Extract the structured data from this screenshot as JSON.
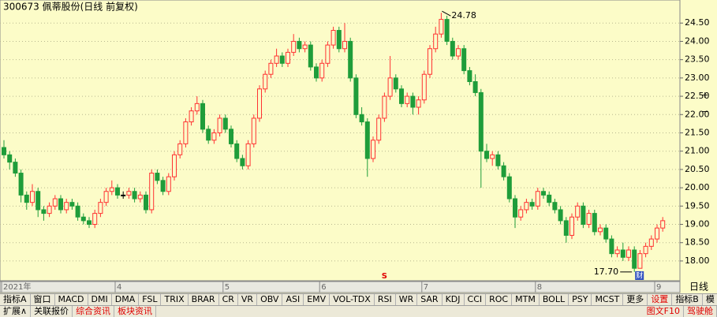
{
  "header": {
    "title": "300673 佩蒂股份(日线 前复权)"
  },
  "chart_data": {
    "type": "candlestick",
    "up_color": "#ff3232",
    "down_color": "#1f9d3a",
    "background": "#fcfcc8",
    "ylim": [
      17.46,
      25.13
    ],
    "yticks": [
      {
        "value": 18.0,
        "label": "18.00"
      },
      {
        "value": 18.5,
        "label": "18.50"
      },
      {
        "value": 19.0,
        "label": "19.00"
      },
      {
        "value": 19.5,
        "label": "19.50"
      },
      {
        "value": 20.0,
        "label": "20.00"
      },
      {
        "value": 20.5,
        "label": "20.50"
      },
      {
        "value": 21.0,
        "label": "21.00"
      },
      {
        "value": 21.5,
        "label": "21.50"
      },
      {
        "value": 22.0,
        "label": "22.00"
      },
      {
        "value": 22.5,
        "label": "22.50"
      },
      {
        "value": 23.0,
        "label": "23.00"
      },
      {
        "value": 23.5,
        "label": "23.50"
      },
      {
        "value": 24.0,
        "label": "24.00"
      },
      {
        "value": 24.5,
        "label": "24.50"
      }
    ],
    "grid": true,
    "max_label": 24.78,
    "min_label": {
      "value": 17.7,
      "label": "17.70"
    },
    "signal_marker": "S",
    "finance_marker": "财",
    "categories": [
      "2021年",
      null,
      null,
      null,
      null,
      null,
      null,
      null,
      null,
      null,
      null,
      null,
      null,
      null,
      null,
      null,
      null,
      null,
      null,
      null,
      "4",
      null,
      null,
      null,
      null,
      null,
      null,
      null,
      null,
      null,
      null,
      null,
      null,
      null,
      null,
      null,
      null,
      null,
      null,
      "5",
      null,
      null,
      null,
      null,
      null,
      null,
      null,
      null,
      null,
      null,
      null,
      null,
      null,
      null,
      null,
      null,
      "6",
      null,
      null,
      null,
      null,
      null,
      null,
      null,
      null,
      null,
      null,
      null,
      null,
      null,
      null,
      null,
      null,
      null,
      "7",
      null,
      null,
      null,
      null,
      null,
      null,
      null,
      null,
      null,
      null,
      null,
      null,
      null,
      null,
      null,
      null,
      null,
      null,
      null,
      "8",
      null,
      null,
      null,
      null,
      null,
      null,
      null,
      null,
      null,
      null,
      null,
      null,
      null,
      null,
      null,
      null,
      null,
      null,
      null,
      null,
      "9"
    ],
    "ohlc": [
      [
        21.1,
        21.3,
        20.8,
        20.9
      ],
      [
        20.9,
        21.0,
        20.5,
        20.7
      ],
      [
        20.7,
        20.8,
        20.3,
        20.4
      ],
      [
        20.4,
        20.5,
        19.6,
        19.8
      ],
      [
        19.8,
        19.9,
        19.4,
        19.6
      ],
      [
        19.6,
        20.1,
        19.5,
        19.9
      ],
      [
        19.9,
        20.0,
        19.2,
        19.4
      ],
      [
        19.4,
        19.5,
        19.1,
        19.3
      ],
      [
        19.3,
        19.6,
        19.2,
        19.5
      ],
      [
        19.5,
        19.8,
        19.4,
        19.7
      ],
      [
        19.7,
        19.8,
        19.3,
        19.4
      ],
      [
        19.4,
        19.7,
        19.3,
        19.6
      ],
      [
        19.6,
        19.7,
        19.4,
        19.5
      ],
      [
        19.5,
        19.6,
        19.1,
        19.2
      ],
      [
        19.2,
        19.3,
        19.0,
        19.1
      ],
      [
        19.1,
        19.2,
        18.9,
        19.0
      ],
      [
        19.0,
        19.4,
        18.9,
        19.3
      ],
      [
        19.3,
        19.7,
        19.2,
        19.6
      ],
      [
        19.6,
        20.0,
        19.5,
        19.9
      ],
      [
        19.9,
        20.2,
        19.8,
        20.0
      ],
      [
        20.0,
        20.1,
        19.7,
        19.8
      ],
      [
        19.8,
        19.9,
        19.7,
        19.8
      ],
      [
        19.8,
        20.0,
        19.7,
        19.9
      ],
      [
        19.9,
        20.0,
        19.6,
        19.7
      ],
      [
        19.7,
        19.9,
        19.6,
        19.8
      ],
      [
        19.8,
        19.9,
        19.3,
        19.4
      ],
      [
        19.4,
        20.5,
        19.3,
        20.4
      ],
      [
        20.4,
        20.5,
        20.1,
        20.2
      ],
      [
        20.2,
        20.3,
        19.8,
        19.9
      ],
      [
        19.9,
        20.4,
        19.8,
        20.3
      ],
      [
        20.3,
        21.0,
        20.2,
        20.9
      ],
      [
        20.9,
        21.3,
        20.8,
        21.2
      ],
      [
        21.2,
        21.9,
        21.1,
        21.8
      ],
      [
        21.8,
        22.2,
        21.7,
        22.1
      ],
      [
        22.1,
        22.5,
        22.0,
        22.3
      ],
      [
        22.3,
        22.4,
        21.5,
        21.6
      ],
      [
        21.6,
        21.7,
        21.2,
        21.3
      ],
      [
        21.3,
        21.6,
        21.2,
        21.5
      ],
      [
        21.5,
        22.0,
        21.4,
        21.9
      ],
      [
        21.9,
        22.0,
        21.5,
        21.6
      ],
      [
        21.6,
        21.7,
        21.1,
        21.2
      ],
      [
        21.2,
        21.3,
        20.7,
        20.8
      ],
      [
        20.8,
        20.9,
        20.5,
        20.6
      ],
      [
        20.6,
        21.3,
        20.5,
        21.2
      ],
      [
        21.2,
        22.0,
        21.1,
        21.9
      ],
      [
        21.9,
        22.8,
        21.8,
        22.7
      ],
      [
        22.7,
        23.2,
        22.6,
        23.1
      ],
      [
        23.1,
        23.5,
        23.0,
        23.4
      ],
      [
        23.4,
        23.8,
        23.3,
        23.6
      ],
      [
        23.6,
        23.7,
        23.3,
        23.4
      ],
      [
        23.4,
        23.8,
        23.3,
        23.7
      ],
      [
        23.7,
        24.2,
        23.6,
        24.0
      ],
      [
        24.0,
        24.1,
        23.7,
        23.8
      ],
      [
        23.8,
        24.0,
        23.7,
        23.9
      ],
      [
        23.9,
        24.0,
        23.2,
        23.3
      ],
      [
        23.3,
        23.4,
        22.9,
        23.0
      ],
      [
        23.0,
        23.5,
        22.9,
        23.4
      ],
      [
        23.4,
        24.0,
        23.3,
        23.9
      ],
      [
        23.9,
        24.4,
        23.8,
        24.3
      ],
      [
        24.3,
        24.4,
        23.7,
        23.8
      ],
      [
        23.8,
        24.5,
        23.7,
        24.0
      ],
      [
        24.0,
        24.1,
        22.9,
        23.0
      ],
      [
        23.0,
        23.1,
        21.9,
        22.0
      ],
      [
        22.0,
        22.2,
        21.7,
        21.8
      ],
      [
        21.8,
        21.9,
        20.3,
        20.8
      ],
      [
        20.8,
        21.4,
        20.7,
        21.3
      ],
      [
        21.3,
        22.0,
        21.2,
        21.9
      ],
      [
        21.9,
        22.6,
        21.8,
        22.5
      ],
      [
        22.5,
        23.6,
        22.4,
        23.0
      ],
      [
        23.0,
        23.1,
        22.6,
        22.7
      ],
      [
        22.7,
        22.8,
        22.2,
        22.3
      ],
      [
        22.3,
        22.6,
        22.2,
        22.5
      ],
      [
        22.5,
        22.6,
        22.0,
        22.2
      ],
      [
        22.2,
        22.5,
        22.0,
        22.4
      ],
      [
        22.4,
        23.2,
        22.3,
        23.1
      ],
      [
        23.1,
        23.9,
        23.0,
        23.8
      ],
      [
        23.8,
        24.4,
        23.7,
        24.2
      ],
      [
        24.2,
        24.78,
        24.1,
        24.6
      ],
      [
        24.6,
        24.7,
        23.9,
        24.0
      ],
      [
        24.0,
        24.1,
        23.5,
        23.6
      ],
      [
        23.6,
        23.9,
        23.5,
        23.8
      ],
      [
        23.8,
        23.9,
        23.1,
        23.2
      ],
      [
        23.2,
        23.3,
        22.8,
        22.9
      ],
      [
        22.9,
        23.1,
        22.5,
        22.6
      ],
      [
        22.6,
        22.7,
        20.0,
        21.0
      ],
      [
        21.0,
        21.2,
        20.7,
        20.8
      ],
      [
        20.8,
        21.0,
        20.6,
        20.9
      ],
      [
        20.9,
        21.0,
        20.5,
        20.6
      ],
      [
        20.6,
        20.7,
        20.2,
        20.3
      ],
      [
        20.3,
        20.4,
        19.6,
        19.7
      ],
      [
        19.7,
        19.8,
        18.9,
        19.2
      ],
      [
        19.2,
        19.5,
        19.1,
        19.4
      ],
      [
        19.4,
        19.7,
        19.3,
        19.6
      ],
      [
        19.6,
        19.7,
        19.4,
        19.5
      ],
      [
        19.5,
        20.0,
        19.4,
        19.9
      ],
      [
        19.9,
        20.0,
        19.7,
        19.8
      ],
      [
        19.8,
        19.9,
        19.5,
        19.6
      ],
      [
        19.6,
        19.7,
        19.3,
        19.4
      ],
      [
        19.4,
        19.5,
        19.0,
        19.1
      ],
      [
        19.1,
        19.2,
        18.5,
        18.7
      ],
      [
        18.7,
        19.3,
        18.6,
        19.2
      ],
      [
        19.2,
        19.6,
        19.1,
        19.5
      ],
      [
        19.5,
        19.6,
        18.9,
        19.0
      ],
      [
        19.0,
        19.4,
        18.9,
        19.3
      ],
      [
        19.3,
        19.4,
        18.7,
        18.8
      ],
      [
        18.8,
        19.0,
        18.7,
        18.9
      ],
      [
        18.9,
        19.0,
        18.5,
        18.6
      ],
      [
        18.6,
        18.7,
        18.1,
        18.2
      ],
      [
        18.2,
        18.4,
        18.1,
        18.3
      ],
      [
        18.3,
        18.5,
        18.0,
        18.1
      ],
      [
        18.1,
        18.4,
        18.0,
        18.3
      ],
      [
        18.3,
        18.4,
        17.7,
        17.8
      ],
      [
        17.8,
        18.3,
        17.8,
        18.2
      ],
      [
        18.2,
        18.5,
        18.1,
        18.4
      ],
      [
        18.4,
        18.7,
        18.3,
        18.6
      ],
      [
        18.6,
        19.0,
        18.5,
        18.9
      ],
      [
        18.9,
        19.2,
        18.8,
        19.1
      ]
    ]
  },
  "side_panel": {
    "zoom": [
      "+",
      "−"
    ],
    "period": "日线"
  },
  "tabs": [
    "指标A",
    "窗口",
    "MACD",
    "DMI",
    "DMA",
    "FSL",
    "TRIX",
    "BRAR",
    "CR",
    "VR",
    "OBV",
    "ASI",
    "EMV",
    "VOL-TDX",
    "RSI",
    "WR",
    "SAR",
    "KDJ",
    "CCI",
    "ROC",
    "MTM",
    "BOLL",
    "PSY",
    "MCST",
    "更多",
    "设置"
  ],
  "tabs_right": [
    "指标B",
    "模 板"
  ],
  "bottom_tabs": [
    "扩展∧",
    "关联报价",
    "综合资讯",
    "板块资讯"
  ],
  "bottom_right": [
    "图文F10",
    "驾驶舱"
  ]
}
